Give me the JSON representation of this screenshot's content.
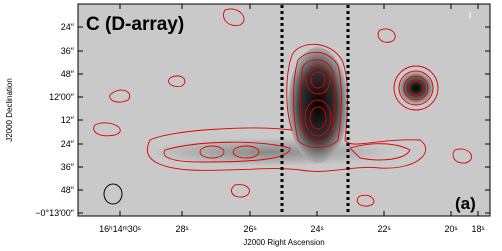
{
  "figure": {
    "title": "C (D-array)",
    "panel_label": "(a)",
    "x_label": "J2000 Right Ascension",
    "y_label": "J2000 Declination",
    "x_ticks": [
      "16ʰ14ᵐ30ˢ",
      "28ˢ",
      "26ˢ",
      "24ˢ",
      "22ˢ",
      "20ˢ",
      "18ˢ"
    ],
    "y_ticks": [
      "24″",
      "36″",
      "48″",
      "12′00″",
      "12″",
      "24″",
      "36″",
      "48″",
      "−0°13′00″"
    ]
  }
}
